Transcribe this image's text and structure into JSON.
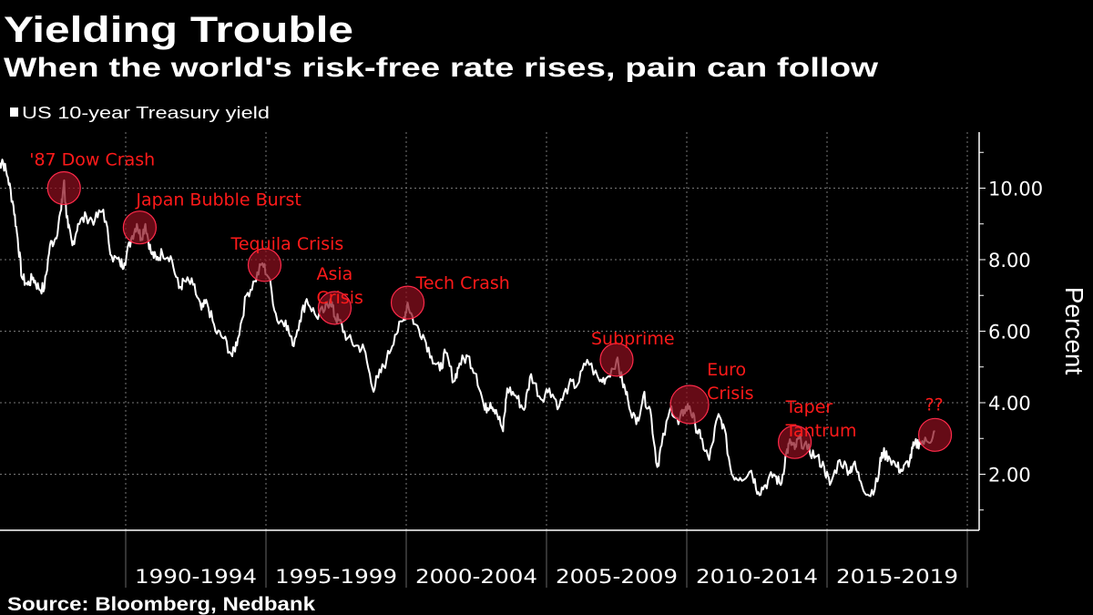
{
  "chart_data": {
    "type": "line",
    "title": "Yielding Trouble",
    "subtitle": "When the world's risk-free rate rises, pain can follow",
    "legend": {
      "position": "top-left",
      "entries": [
        {
          "label": "US 10-year Treasury yield",
          "color": "#ffffff"
        }
      ]
    },
    "ylabel": "Percent",
    "ylim": [
      0.5,
      11.5
    ],
    "yticks": [
      "2.00",
      "4.00",
      "6.00",
      "8.00",
      "10.00"
    ],
    "ytick_values": [
      2,
      4,
      6,
      8,
      10
    ],
    "y_axis_side": "right",
    "xlim": [
      1985.5,
      2020.3
    ],
    "xtick_labels": [
      "1990-1994",
      "1995-1999",
      "2000-2004",
      "2005-2009",
      "2010-2014",
      "2015-2019"
    ],
    "xtick_bounds": [
      1990,
      1995,
      2000,
      2005,
      2010,
      2015,
      2020
    ],
    "grid": true,
    "colors": {
      "background": "#000000",
      "line": "#ffffff",
      "annotation": "#ff1a1a",
      "circle_fill": "#7a0f1c"
    },
    "series": [
      {
        "name": "US 10-year Treasury yield",
        "x": [
          1985.5,
          1985.6,
          1985.8,
          1986.0,
          1986.15,
          1986.3,
          1986.5,
          1986.7,
          1986.9,
          1987.1,
          1987.3,
          1987.5,
          1987.7,
          1987.8,
          1987.85,
          1987.95,
          1988.1,
          1988.3,
          1988.6,
          1988.9,
          1989.2,
          1989.5,
          1989.8,
          1989.95,
          1990.2,
          1990.4,
          1990.55,
          1990.7,
          1990.9,
          1991.1,
          1991.3,
          1991.6,
          1991.9,
          1992.1,
          1992.4,
          1992.7,
          1992.9,
          1993.2,
          1993.5,
          1993.8,
          1994.0,
          1994.3,
          1994.6,
          1994.87,
          1995.1,
          1995.4,
          1995.7,
          1995.95,
          1996.2,
          1996.45,
          1996.8,
          1997.1,
          1997.3,
          1997.45,
          1997.6,
          1997.9,
          1998.2,
          1998.5,
          1998.8,
          1999.0,
          1999.3,
          1999.6,
          1999.9,
          2000.05,
          2000.3,
          2000.6,
          2000.9,
          2001.2,
          2001.4,
          2001.7,
          2001.9,
          2002.2,
          2002.5,
          2002.8,
          2003.0,
          2003.2,
          2003.45,
          2003.6,
          2003.9,
          2004.2,
          2004.45,
          2004.8,
          2005.1,
          2005.45,
          2005.8,
          2006.1,
          2006.45,
          2006.9,
          2007.15,
          2007.5,
          2007.7,
          2007.9,
          2008.2,
          2008.45,
          2008.7,
          2008.95,
          2009.1,
          2009.45,
          2009.7,
          2009.9,
          2010.1,
          2010.3,
          2010.5,
          2010.8,
          2011.1,
          2011.3,
          2011.6,
          2011.9,
          2012.3,
          2012.55,
          2012.8,
          2013.1,
          2013.35,
          2013.55,
          2013.7,
          2013.85,
          2014.0,
          2014.3,
          2014.6,
          2014.9,
          2015.1,
          2015.45,
          2015.8,
          2015.95,
          2016.2,
          2016.5,
          2016.8,
          2016.95,
          2017.2,
          2017.5,
          2017.7,
          2017.95,
          2018.1,
          2018.3,
          2018.6,
          2018.85
        ],
        "y": [
          10.6,
          10.8,
          10.3,
          9.5,
          8.6,
          7.5,
          7.3,
          7.5,
          7.2,
          7.2,
          8.4,
          8.6,
          9.4,
          10.2,
          9.6,
          8.9,
          8.4,
          9.0,
          9.2,
          9.1,
          9.4,
          8.1,
          7.9,
          7.9,
          8.6,
          9.0,
          8.6,
          9.0,
          8.2,
          8.0,
          8.2,
          8.1,
          7.2,
          7.4,
          7.3,
          6.6,
          6.8,
          6.0,
          5.8,
          5.3,
          5.8,
          7.0,
          7.4,
          7.9,
          7.5,
          6.3,
          6.3,
          5.6,
          6.3,
          6.9,
          6.4,
          6.6,
          6.9,
          6.4,
          6.3,
          5.8,
          5.6,
          5.5,
          4.4,
          4.7,
          5.2,
          5.9,
          6.3,
          6.8,
          6.2,
          5.9,
          5.3,
          4.9,
          5.4,
          4.6,
          5.1,
          5.3,
          4.8,
          3.8,
          4.0,
          3.8,
          3.2,
          4.4,
          4.2,
          3.8,
          4.8,
          4.1,
          4.4,
          3.9,
          4.5,
          4.5,
          5.2,
          4.6,
          4.7,
          5.2,
          4.6,
          4.1,
          3.4,
          4.2,
          3.8,
          2.2,
          2.8,
          3.9,
          3.4,
          3.8,
          3.9,
          3.4,
          3.0,
          2.4,
          3.6,
          3.4,
          2.0,
          1.9,
          2.1,
          1.5,
          1.7,
          2.0,
          1.7,
          2.6,
          2.9,
          2.7,
          3.0,
          2.7,
          2.5,
          2.2,
          1.7,
          2.4,
          2.1,
          2.3,
          1.8,
          1.4,
          1.8,
          2.6,
          2.5,
          2.2,
          2.1,
          2.4,
          2.8,
          2.9,
          2.9,
          3.2
        ]
      }
    ],
    "annotations": [
      {
        "label": [
          "'87 Dow Crash"
        ],
        "x": 1987.8,
        "y": 10.0
      },
      {
        "label": [
          "Japan Bubble Burst"
        ],
        "x": 1990.5,
        "y": 8.9
      },
      {
        "label": [
          "Tequila Crisis"
        ],
        "x": 1994.95,
        "y": 7.85
      },
      {
        "label": [
          "Asia",
          "Crisis"
        ],
        "x": 1997.45,
        "y": 6.65
      },
      {
        "label": [
          "Tech Crash"
        ],
        "x": 2000.05,
        "y": 6.8
      },
      {
        "label": [
          "Subprime"
        ],
        "x": 2007.5,
        "y": 5.2
      },
      {
        "label": [
          "Euro",
          "Crisis"
        ],
        "x": 2010.1,
        "y": 3.95
      },
      {
        "label": [
          "Taper",
          "Tantrum"
        ],
        "x": 2013.85,
        "y": 2.9
      },
      {
        "label": [
          "??"
        ],
        "x": 2018.85,
        "y": 3.1
      }
    ],
    "source": "Source: Bloomberg, Nedbank"
  }
}
